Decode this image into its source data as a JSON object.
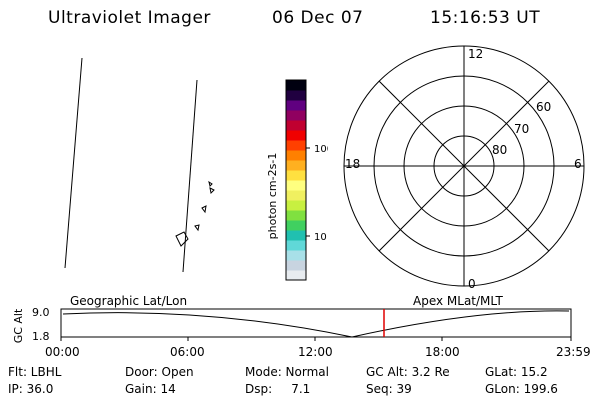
{
  "header": {
    "instrument": "Ultraviolet Imager",
    "date": "06 Dec 07",
    "time": "15:16:53 UT"
  },
  "colorbar": {
    "label": "photon cm-2s-1",
    "ticks": [
      "100",
      "10"
    ],
    "colors": [
      "#e8ecf0",
      "#c8d4e0",
      "#a8e0e8",
      "#60d8d8",
      "#20c0b0",
      "#40d060",
      "#80e040",
      "#c8f040",
      "#f0f060",
      "#ffff80",
      "#ffe040",
      "#ffb020",
      "#ff8000",
      "#ff4000",
      "#f00000",
      "#c00030",
      "#900060",
      "#600080",
      "#200040",
      "#000010"
    ]
  },
  "polar_plot": {
    "hour_labels": [
      "12",
      "18",
      "6",
      "0"
    ],
    "lat_labels": [
      "60",
      "70",
      "80"
    ]
  },
  "timeline": {
    "left_label": "Geographic Lat/Lon",
    "right_label": "Apex MLat/MLT",
    "y_axis_label": "GC Alt",
    "y_ticks": [
      "9.0",
      "1.8"
    ],
    "x_ticks": [
      "00:00",
      "06:00",
      "12:00",
      "18:00",
      "23:59"
    ],
    "marker_color": "#e00000"
  },
  "info": {
    "filter": "Flt: LBHL",
    "door": "Door: Open",
    "mode": "Mode: Normal",
    "gc_alt": "GC Alt: 3.2 Re",
    "glat": "GLat:  15.2",
    "ip": "IP: 36.0",
    "gain": "Gain: 14",
    "dsp": "Dsp:     7.1",
    "seq": "Seq: 39",
    "glon": "GLon: 199.6"
  }
}
